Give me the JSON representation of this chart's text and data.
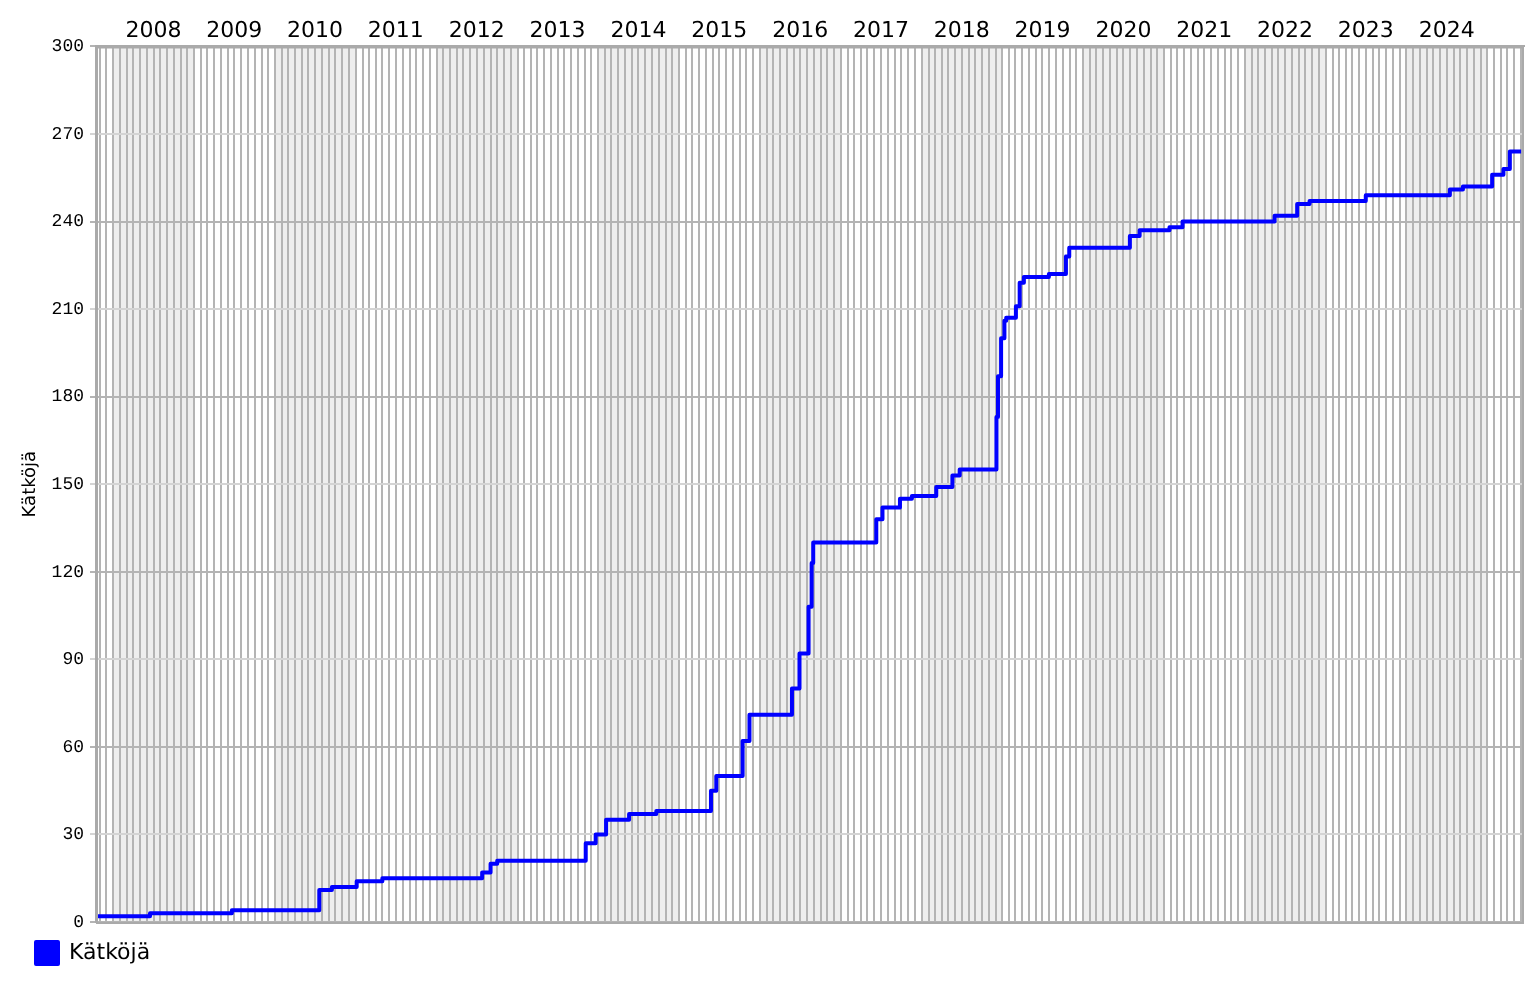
{
  "chart_data": {
    "type": "step",
    "ylabel": "Kätköjä",
    "x": [
      "2007-10-15",
      "2008-06-15",
      "2009-06-20",
      "2009-10-10",
      "2010-07-20",
      "2010-09-15",
      "2011-01-05",
      "2011-05-01",
      "2011-09-01",
      "2012-07-25",
      "2012-09-01",
      "2012-10-01",
      "2013-04-20",
      "2013-11-05",
      "2013-12-20",
      "2014-02-05",
      "2014-05-20",
      "2014-09-20",
      "2015-01-20",
      "2015-05-25",
      "2015-06-18",
      "2015-10-15",
      "2015-11-15",
      "2015-12-15",
      "2016-05-25",
      "2016-06-28",
      "2016-08-08",
      "2016-08-22",
      "2016-08-29",
      "2016-09-05",
      "2017-06-10",
      "2017-07-08",
      "2017-09-25",
      "2017-11-18",
      "2018-03-08",
      "2018-05-20",
      "2018-06-22",
      "2018-08-08",
      "2018-12-05",
      "2018-12-12",
      "2018-12-26",
      "2019-01-10",
      "2019-01-18",
      "2019-03-03",
      "2019-03-20",
      "2019-04-08",
      "2019-07-30",
      "2019-10-15",
      "2019-10-30",
      "2019-12-16",
      "2020-07-30",
      "2020-09-12",
      "2021-01-25",
      "2021-03-25",
      "2021-07-12",
      "2022-05-15",
      "2022-06-20",
      "2022-08-25",
      "2022-10-20",
      "2022-12-05",
      "2023-07-01",
      "2023-08-18",
      "2024-07-15",
      "2024-09-12",
      "2025-01-22",
      "2025-03-14",
      "2025-04-12",
      "2025-05-08",
      "2025-06-02"
    ],
    "series": [
      {
        "name": "Kätköjä",
        "color": "#0000ff",
        "values": [
          1,
          2,
          3,
          4,
          4,
          11,
          12,
          14,
          15,
          15,
          17,
          20,
          21,
          21,
          27,
          30,
          35,
          37,
          38,
          38,
          45,
          50,
          62,
          71,
          71,
          80,
          92,
          108,
          123,
          130,
          130,
          138,
          142,
          145,
          146,
          149,
          153,
          155,
          155,
          173,
          187,
          200,
          206,
          207,
          211,
          219,
          221,
          222,
          228,
          231,
          231,
          235,
          237,
          238,
          240,
          240,
          242,
          242,
          246,
          247,
          247,
          249,
          249,
          251,
          252,
          256,
          258,
          264,
          264
        ]
      }
    ],
    "xlim": [
      "2007-10-15",
      "2025-06-15"
    ],
    "xticks": [
      {
        "value": "2007-11",
        "label": null
      },
      {
        "value": "2007-12",
        "label": null
      },
      {
        "value": "2008-01",
        "label": null
      },
      {
        "value": "2008-02",
        "label": null
      },
      {
        "value": "2008-03",
        "label": null
      },
      {
        "value": "2008-04",
        "label": null
      },
      {
        "value": "2008-05",
        "label": null
      },
      {
        "value": "2008-06",
        "label": null
      },
      {
        "value": "2008-07",
        "label": "2008"
      },
      {
        "value": "2008-08",
        "label": null
      },
      {
        "value": "2008-09",
        "label": null
      },
      {
        "value": "2008-10",
        "label": null
      },
      {
        "value": "2008-11",
        "label": null
      },
      {
        "value": "2008-12",
        "label": null
      },
      {
        "value": "2009-01",
        "label": null
      },
      {
        "value": "2009-02",
        "label": null
      },
      {
        "value": "2009-03",
        "label": null
      },
      {
        "value": "2009-04",
        "label": null
      },
      {
        "value": "2009-05",
        "label": null
      },
      {
        "value": "2009-06",
        "label": null
      },
      {
        "value": "2009-07",
        "label": "2009"
      },
      {
        "value": "2009-08",
        "label": null
      },
      {
        "value": "2009-09",
        "label": null
      },
      {
        "value": "2009-10",
        "label": null
      },
      {
        "value": "2009-11",
        "label": null
      },
      {
        "value": "2009-12",
        "label": null
      },
      {
        "value": "2010-01",
        "label": null
      },
      {
        "value": "2010-02",
        "label": null
      },
      {
        "value": "2010-03",
        "label": null
      },
      {
        "value": "2010-04",
        "label": null
      },
      {
        "value": "2010-05",
        "label": null
      },
      {
        "value": "2010-06",
        "label": null
      },
      {
        "value": "2010-07",
        "label": "2010"
      },
      {
        "value": "2010-08",
        "label": null
      },
      {
        "value": "2010-09",
        "label": null
      },
      {
        "value": "2010-10",
        "label": null
      },
      {
        "value": "2010-11",
        "label": null
      },
      {
        "value": "2010-12",
        "label": null
      },
      {
        "value": "2011-01",
        "label": null
      },
      {
        "value": "2011-02",
        "label": null
      },
      {
        "value": "2011-03",
        "label": null
      },
      {
        "value": "2011-04",
        "label": null
      },
      {
        "value": "2011-05",
        "label": null
      },
      {
        "value": "2011-06",
        "label": null
      },
      {
        "value": "2011-07",
        "label": "2011"
      },
      {
        "value": "2011-08",
        "label": null
      },
      {
        "value": "2011-09",
        "label": null
      },
      {
        "value": "2011-10",
        "label": null
      },
      {
        "value": "2011-11",
        "label": null
      },
      {
        "value": "2011-12",
        "label": null
      },
      {
        "value": "2012-01",
        "label": null
      },
      {
        "value": "2012-02",
        "label": null
      },
      {
        "value": "2012-03",
        "label": null
      },
      {
        "value": "2012-04",
        "label": null
      },
      {
        "value": "2012-05",
        "label": null
      },
      {
        "value": "2012-06",
        "label": null
      },
      {
        "value": "2012-07",
        "label": "2012"
      },
      {
        "value": "2012-08",
        "label": null
      },
      {
        "value": "2012-09",
        "label": null
      },
      {
        "value": "2012-10",
        "label": null
      },
      {
        "value": "2012-11",
        "label": null
      },
      {
        "value": "2012-12",
        "label": null
      },
      {
        "value": "2013-01",
        "label": null
      },
      {
        "value": "2013-02",
        "label": null
      },
      {
        "value": "2013-03",
        "label": null
      },
      {
        "value": "2013-04",
        "label": null
      },
      {
        "value": "2013-05",
        "label": null
      },
      {
        "value": "2013-06",
        "label": null
      },
      {
        "value": "2013-07",
        "label": "2013"
      },
      {
        "value": "2013-08",
        "label": null
      },
      {
        "value": "2013-09",
        "label": null
      },
      {
        "value": "2013-10",
        "label": null
      },
      {
        "value": "2013-11",
        "label": null
      },
      {
        "value": "2013-12",
        "label": null
      },
      {
        "value": "2014-01",
        "label": null
      },
      {
        "value": "2014-02",
        "label": null
      },
      {
        "value": "2014-03",
        "label": null
      },
      {
        "value": "2014-04",
        "label": null
      },
      {
        "value": "2014-05",
        "label": null
      },
      {
        "value": "2014-06",
        "label": null
      },
      {
        "value": "2014-07",
        "label": "2014"
      },
      {
        "value": "2014-08",
        "label": null
      },
      {
        "value": "2014-09",
        "label": null
      },
      {
        "value": "2014-10",
        "label": null
      },
      {
        "value": "2014-11",
        "label": null
      },
      {
        "value": "2014-12",
        "label": null
      },
      {
        "value": "2015-01",
        "label": null
      },
      {
        "value": "2015-02",
        "label": null
      },
      {
        "value": "2015-03",
        "label": null
      },
      {
        "value": "2015-04",
        "label": null
      },
      {
        "value": "2015-05",
        "label": null
      },
      {
        "value": "2015-06",
        "label": null
      },
      {
        "value": "2015-07",
        "label": "2015"
      },
      {
        "value": "2015-08",
        "label": null
      },
      {
        "value": "2015-09",
        "label": null
      },
      {
        "value": "2015-10",
        "label": null
      },
      {
        "value": "2015-11",
        "label": null
      },
      {
        "value": "2015-12",
        "label": null
      },
      {
        "value": "2016-01",
        "label": null
      },
      {
        "value": "2016-02",
        "label": null
      },
      {
        "value": "2016-03",
        "label": null
      },
      {
        "value": "2016-04",
        "label": null
      },
      {
        "value": "2016-05",
        "label": null
      },
      {
        "value": "2016-06",
        "label": null
      },
      {
        "value": "2016-07",
        "label": "2016"
      },
      {
        "value": "2016-08",
        "label": null
      },
      {
        "value": "2016-09",
        "label": null
      },
      {
        "value": "2016-10",
        "label": null
      },
      {
        "value": "2016-11",
        "label": null
      },
      {
        "value": "2016-12",
        "label": null
      },
      {
        "value": "2017-01",
        "label": null
      },
      {
        "value": "2017-02",
        "label": null
      },
      {
        "value": "2017-03",
        "label": null
      },
      {
        "value": "2017-04",
        "label": null
      },
      {
        "value": "2017-05",
        "label": null
      },
      {
        "value": "2017-06",
        "label": null
      },
      {
        "value": "2017-07",
        "label": "2017"
      },
      {
        "value": "2017-08",
        "label": null
      },
      {
        "value": "2017-09",
        "label": null
      },
      {
        "value": "2017-10",
        "label": null
      },
      {
        "value": "2017-11",
        "label": null
      },
      {
        "value": "2017-12",
        "label": null
      },
      {
        "value": "2018-01",
        "label": null
      },
      {
        "value": "2018-02",
        "label": null
      },
      {
        "value": "2018-03",
        "label": null
      },
      {
        "value": "2018-04",
        "label": null
      },
      {
        "value": "2018-05",
        "label": null
      },
      {
        "value": "2018-06",
        "label": null
      },
      {
        "value": "2018-07",
        "label": "2018"
      },
      {
        "value": "2018-08",
        "label": null
      },
      {
        "value": "2018-09",
        "label": null
      },
      {
        "value": "2018-10",
        "label": null
      },
      {
        "value": "2018-11",
        "label": null
      },
      {
        "value": "2018-12",
        "label": null
      },
      {
        "value": "2019-01",
        "label": null
      },
      {
        "value": "2019-02",
        "label": null
      },
      {
        "value": "2019-03",
        "label": null
      },
      {
        "value": "2019-04",
        "label": null
      },
      {
        "value": "2019-05",
        "label": null
      },
      {
        "value": "2019-06",
        "label": null
      },
      {
        "value": "2019-07",
        "label": "2019"
      },
      {
        "value": "2019-08",
        "label": null
      },
      {
        "value": "2019-09",
        "label": null
      },
      {
        "value": "2019-10",
        "label": null
      },
      {
        "value": "2019-11",
        "label": null
      },
      {
        "value": "2019-12",
        "label": null
      },
      {
        "value": "2020-01",
        "label": null
      },
      {
        "value": "2020-02",
        "label": null
      },
      {
        "value": "2020-03",
        "label": null
      },
      {
        "value": "2020-04",
        "label": null
      },
      {
        "value": "2020-05",
        "label": null
      },
      {
        "value": "2020-06",
        "label": null
      },
      {
        "value": "2020-07",
        "label": "2020"
      },
      {
        "value": "2020-08",
        "label": null
      },
      {
        "value": "2020-09",
        "label": null
      },
      {
        "value": "2020-10",
        "label": null
      },
      {
        "value": "2020-11",
        "label": null
      },
      {
        "value": "2020-12",
        "label": null
      },
      {
        "value": "2021-01",
        "label": null
      },
      {
        "value": "2021-02",
        "label": null
      },
      {
        "value": "2021-03",
        "label": null
      },
      {
        "value": "2021-04",
        "label": null
      },
      {
        "value": "2021-05",
        "label": null
      },
      {
        "value": "2021-06",
        "label": null
      },
      {
        "value": "2021-07",
        "label": "2021"
      },
      {
        "value": "2021-08",
        "label": null
      },
      {
        "value": "2021-09",
        "label": null
      },
      {
        "value": "2021-10",
        "label": null
      },
      {
        "value": "2021-11",
        "label": null
      },
      {
        "value": "2021-12",
        "label": null
      },
      {
        "value": "2022-01",
        "label": null
      },
      {
        "value": "2022-02",
        "label": null
      },
      {
        "value": "2022-03",
        "label": null
      },
      {
        "value": "2022-04",
        "label": null
      },
      {
        "value": "2022-05",
        "label": null
      },
      {
        "value": "2022-06",
        "label": null
      },
      {
        "value": "2022-07",
        "label": "2022"
      },
      {
        "value": "2022-08",
        "label": null
      },
      {
        "value": "2022-09",
        "label": null
      },
      {
        "value": "2022-10",
        "label": null
      },
      {
        "value": "2022-11",
        "label": null
      },
      {
        "value": "2022-12",
        "label": null
      },
      {
        "value": "2023-01",
        "label": null
      },
      {
        "value": "2023-02",
        "label": null
      },
      {
        "value": "2023-03",
        "label": null
      },
      {
        "value": "2023-04",
        "label": null
      },
      {
        "value": "2023-05",
        "label": null
      },
      {
        "value": "2023-06",
        "label": null
      },
      {
        "value": "2023-07",
        "label": "2023"
      },
      {
        "value": "2023-08",
        "label": null
      },
      {
        "value": "2023-09",
        "label": null
      },
      {
        "value": "2023-10",
        "label": null
      },
      {
        "value": "2023-11",
        "label": null
      },
      {
        "value": "2023-12",
        "label": null
      },
      {
        "value": "2024-01",
        "label": null
      },
      {
        "value": "2024-02",
        "label": null
      },
      {
        "value": "2024-03",
        "label": null
      },
      {
        "value": "2024-04",
        "label": null
      },
      {
        "value": "2024-05",
        "label": null
      },
      {
        "value": "2024-06",
        "label": null
      },
      {
        "value": "2024-07",
        "label": "2024"
      },
      {
        "value": "2024-08",
        "label": null
      },
      {
        "value": "2024-09",
        "label": null
      },
      {
        "value": "2024-10",
        "label": null
      },
      {
        "value": "2024-11",
        "label": null
      },
      {
        "value": "2024-12",
        "label": null
      },
      {
        "value": "2025-01",
        "label": null
      },
      {
        "value": "2025-02",
        "label": null
      },
      {
        "value": "2025-03",
        "label": null
      },
      {
        "value": "2025-04",
        "label": null
      },
      {
        "value": "2025-05",
        "label": null
      },
      {
        "value": "2025-06",
        "label": null
      }
    ],
    "ylim": [
      0,
      300
    ],
    "yticks": [
      0,
      30,
      60,
      90,
      120,
      150,
      180,
      210,
      240,
      270,
      300
    ],
    "bands": [
      {
        "axis": "x",
        "from": "2008-01-01",
        "to": "2009-01-01",
        "color": "#eeeeee"
      },
      {
        "axis": "x",
        "from": "2010-01-01",
        "to": "2011-01-01",
        "color": "#eeeeee"
      },
      {
        "axis": "x",
        "from": "2012-01-01",
        "to": "2013-01-01",
        "color": "#eeeeee"
      },
      {
        "axis": "x",
        "from": "2014-01-01",
        "to": "2015-01-01",
        "color": "#eeeeee"
      },
      {
        "axis": "x",
        "from": "2016-01-01",
        "to": "2017-01-01",
        "color": "#eeeeee"
      },
      {
        "axis": "x",
        "from": "2018-01-01",
        "to": "2019-01-01",
        "color": "#eeeeee"
      },
      {
        "axis": "x",
        "from": "2020-01-01",
        "to": "2021-01-01",
        "color": "#eeeeee"
      },
      {
        "axis": "x",
        "from": "2022-01-01",
        "to": "2023-01-01",
        "color": "#eeeeee"
      },
      {
        "axis": "x",
        "from": "2024-01-01",
        "to": "2025-01-01",
        "color": "#eeeeee"
      }
    ],
    "grid": true,
    "legend": "bottom left"
  }
}
